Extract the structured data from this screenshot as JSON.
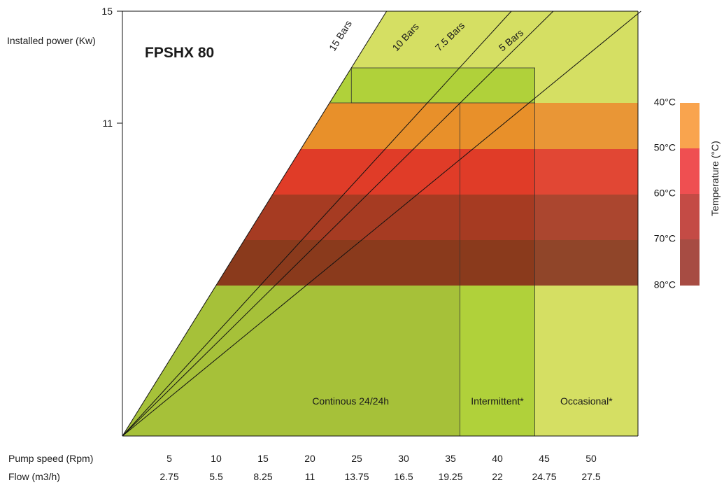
{
  "chart_data": {
    "type": "area",
    "title": "FPSHX 80",
    "ylabel": "Installed power (Kw)",
    "y_ticks": [
      "15",
      "11"
    ],
    "ylim": [
      0,
      15
    ],
    "xlim": [
      0,
      55
    ],
    "x_rows": [
      {
        "label": "Pump speed (Rpm)",
        "ticks": [
          "5",
          "10",
          "15",
          "20",
          "25",
          "30",
          "35",
          "40",
          "45",
          "50"
        ]
      },
      {
        "label": "Flow (m3/h)",
        "ticks": [
          "2.75",
          "5.5",
          "8.25",
          "11",
          "13.75",
          "16.5",
          "19.25",
          "22",
          "24.75",
          "27.5"
        ]
      }
    ],
    "x_tick_values": [
      5,
      10,
      15,
      20,
      25,
      30,
      35,
      40,
      45,
      50
    ],
    "zones": [
      {
        "label": "Continous 24/24h",
        "x_max": 36
      },
      {
        "label": "Intermittent*",
        "x_max": 44
      },
      {
        "label": "Occasional*",
        "x_max": 55
      }
    ],
    "pressure_lines": [
      {
        "label": "15 Bars",
        "power_at_10rpm": 5.3
      },
      {
        "label": "10 Bars",
        "power_at_10rpm": 3.6
      },
      {
        "label": "7.5 Bars",
        "power_at_10rpm": 3.25
      },
      {
        "label": "5 Bars",
        "power_at_10rpm": 2.7
      }
    ],
    "temperature_axis_label": "Temperature (°C)",
    "temperature_bands": [
      {
        "label": "40°C",
        "color": "#f9a44e"
      },
      {
        "label": "50°C",
        "color": "#ef4f51"
      },
      {
        "label": "60°C",
        "color": "#c44b45"
      },
      {
        "label": "70°C",
        "color": "#a74c43"
      }
    ],
    "temperature_band_labels": [
      "40°C",
      "50°C",
      "60°C",
      "70°C",
      "80°C"
    ],
    "colors": {
      "continuous": "#a6c139",
      "intermittent": "#b0d13a",
      "occasional": "#d5df63",
      "band_40": "#e8902a",
      "band_50": "#e03c28",
      "band_60": "#a63b22",
      "band_70": "#8a3a1c"
    }
  }
}
